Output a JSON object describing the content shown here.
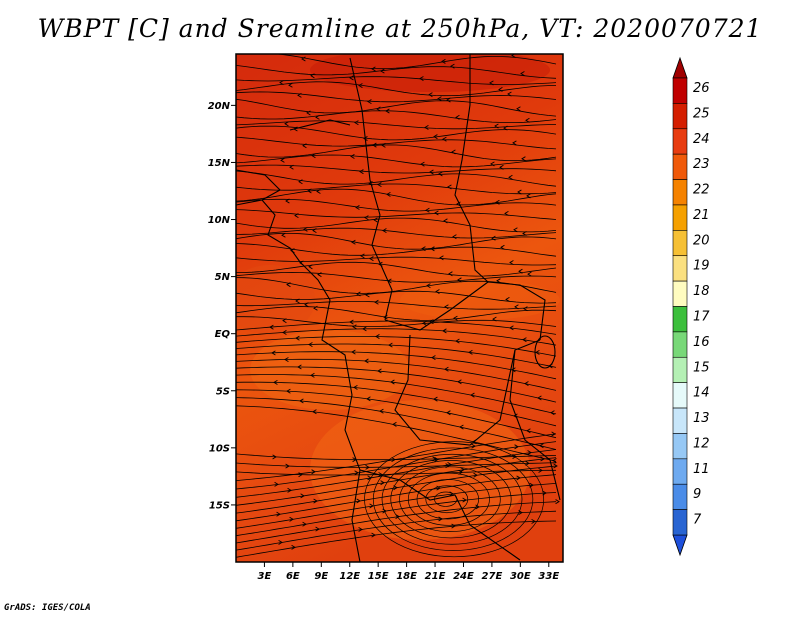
{
  "title": "WBPT [C] and Sreamline at 250hPa, VT: 2020070721",
  "credit": "GrADS: IGES/COLA",
  "map": {
    "lat_labels": [
      "20N",
      "15N",
      "10N",
      "5N",
      "EQ",
      "5S",
      "10S",
      "15S"
    ],
    "lat_values": [
      20,
      15,
      10,
      5,
      0,
      -5,
      -10,
      -15
    ],
    "lon_labels": [
      "3E",
      "6E",
      "9E",
      "12E",
      "15E",
      "18E",
      "21E",
      "24E",
      "27E",
      "30E",
      "33E"
    ],
    "lon_values": [
      3,
      6,
      9,
      12,
      15,
      18,
      21,
      24,
      27,
      30,
      33
    ],
    "lon_range": [
      0,
      34.5
    ],
    "lat_range": [
      -20,
      24.5
    ],
    "field_colors": {
      "warm_dark": "#d42a0c",
      "warm_mid": "#e8460e",
      "warm_light": "#f06a12"
    }
  },
  "colorbar": {
    "levels": [
      "26",
      "25",
      "24",
      "23",
      "22",
      "21",
      "20",
      "19",
      "18",
      "17",
      "16",
      "15",
      "14",
      "13",
      "12",
      "11",
      "9",
      "7"
    ],
    "colors": [
      "#c00000",
      "#d41e00",
      "#e83c10",
      "#f05a0a",
      "#f58200",
      "#f5a000",
      "#f6c035",
      "#fbe080",
      "#fffcc0",
      "#3cbf3c",
      "#78d878",
      "#b4f0b4",
      "#e6fafa",
      "#c8e6fa",
      "#96c8f5",
      "#6eaaf0",
      "#4a8ce8",
      "#2864d2"
    ],
    "top_arrow_color": "#a00000",
    "bottom_arrow_color": "#1e50dc"
  }
}
